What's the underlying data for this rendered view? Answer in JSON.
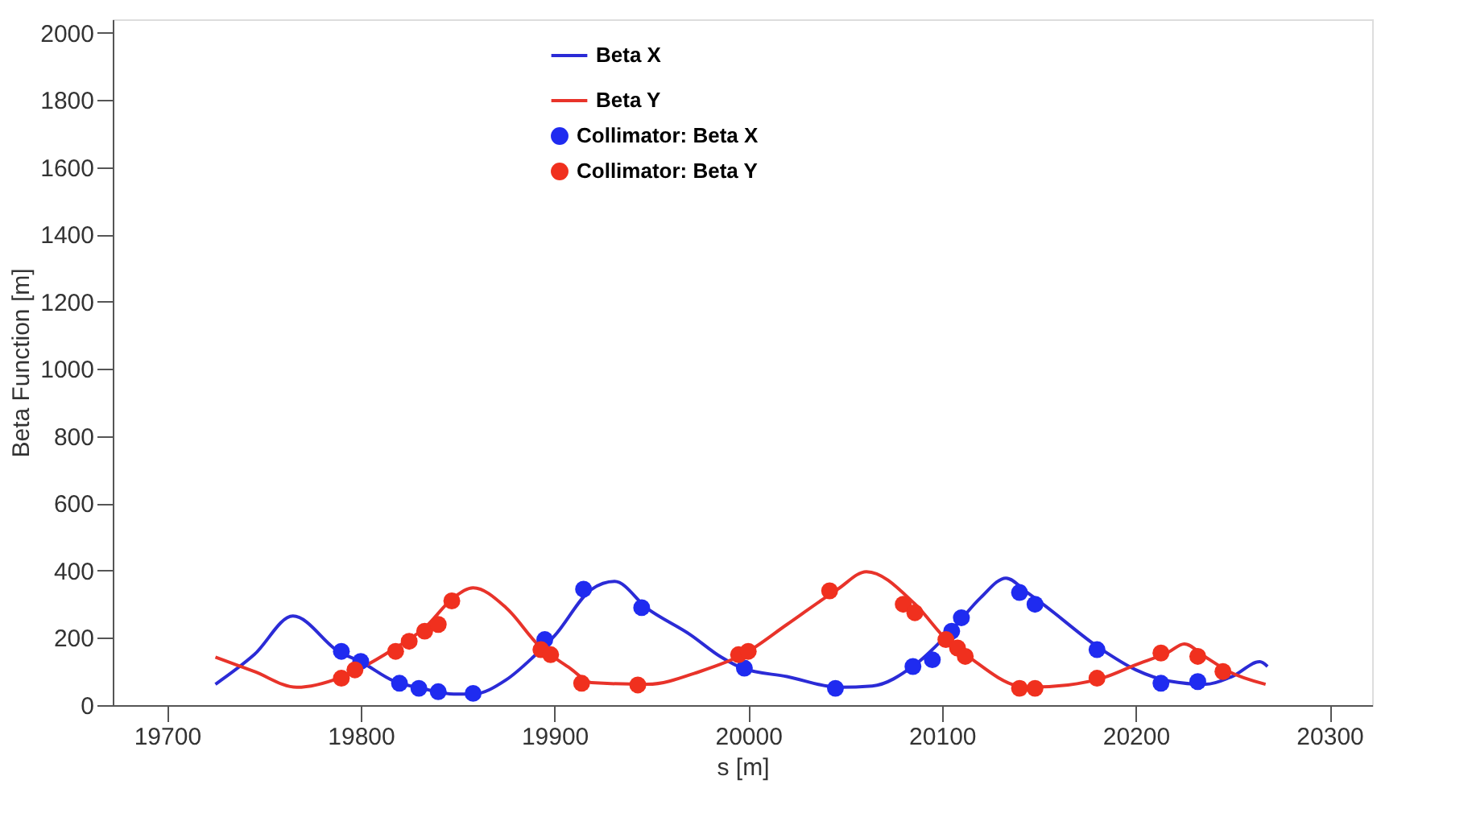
{
  "chart_data": {
    "type": "line",
    "xlabel": "s [m]",
    "ylabel": "Beta Function [m]",
    "xlim": [
      19672,
      20322
    ],
    "ylim": [
      0,
      2040
    ],
    "xticks": [
      19700,
      19800,
      19900,
      20000,
      20100,
      20200,
      20300
    ],
    "yticks": [
      0,
      200,
      400,
      600,
      800,
      1000,
      1200,
      1400,
      1600,
      1800,
      2000
    ],
    "grid": false,
    "legend": "top",
    "line_style": "solid",
    "series": [
      {
        "name": "Beta X",
        "type": "line",
        "color": "#2b2bd6",
        "x": [
          19725,
          19745,
          19765,
          19789,
          19800,
          19817,
          19833,
          19848,
          19858,
          19875,
          19889,
          19900,
          19919,
          19931,
          19948,
          19970,
          19986,
          19997,
          20020,
          20047,
          20064,
          20086,
          20106,
          20120,
          20133,
          20144,
          20152,
          20182,
          20200,
          20217,
          20236,
          20250,
          20264,
          20268
        ],
        "values": [
          62,
          150,
          265,
          158,
          129,
          72,
          48,
          33,
          33,
          75,
          143,
          206,
          344,
          368,
          287,
          210,
          143,
          110,
          85,
          53,
          57,
          120,
          230,
          320,
          378,
          335,
          301,
          167,
          105,
          72,
          62,
          86,
          129,
          115
        ]
      },
      {
        "name": "Beta Y",
        "type": "line",
        "color": "#e8332a",
        "x": [
          19725,
          19745,
          19767,
          19789,
          19800,
          19817,
          19833,
          19848,
          19858,
          19875,
          19892,
          19908,
          19919,
          19948,
          19975,
          19998,
          20020,
          20046,
          20061,
          20086,
          20103,
          20114,
          20139,
          20144,
          20165,
          20183,
          20200,
          20217,
          20225,
          20236,
          20248,
          20267
        ],
        "values": [
          143,
          100,
          53,
          81,
          110,
          167,
          230,
          320,
          349,
          290,
          177,
          110,
          67,
          62,
          100,
          153,
          240,
          344,
          397,
          301,
          191,
          143,
          57,
          53,
          60,
          81,
          120,
          158,
          182,
          143,
          100,
          62
        ]
      },
      {
        "name": "Collimator: Beta X",
        "type": "scatter",
        "marker": "circle",
        "color": "#1f2bf0",
        "x": [
          19790,
          19800,
          19820,
          19830,
          19840,
          19858,
          19895,
          19915,
          19945,
          19998,
          20045,
          20085,
          20095,
          20105,
          20110,
          20140,
          20148,
          20180,
          20213,
          20232
        ],
        "values": [
          160,
          130,
          65,
          50,
          40,
          35,
          195,
          345,
          290,
          110,
          50,
          115,
          135,
          220,
          260,
          335,
          300,
          165,
          65,
          70
        ]
      },
      {
        "name": "Collimator: Beta Y",
        "type": "scatter",
        "marker": "circle",
        "color": "#f0301e",
        "x": [
          19790,
          19797,
          19818,
          19825,
          19833,
          19840,
          19847,
          19893,
          19898,
          19914,
          19943,
          19995,
          20000,
          20042,
          20080,
          20086,
          20102,
          20108,
          20112,
          20140,
          20148,
          20180,
          20213,
          20232,
          20245
        ],
        "values": [
          80,
          105,
          160,
          190,
          220,
          240,
          310,
          165,
          150,
          65,
          60,
          150,
          160,
          340,
          300,
          275,
          195,
          170,
          145,
          50,
          50,
          80,
          155,
          145,
          100
        ]
      }
    ]
  }
}
